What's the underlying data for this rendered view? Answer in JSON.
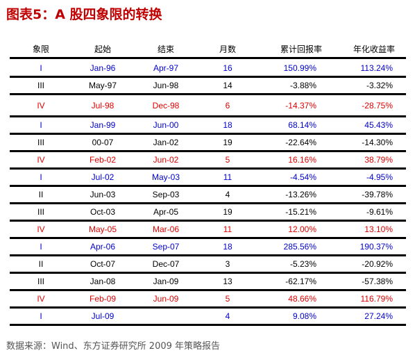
{
  "title": "图表5：A 股四象限的转换",
  "columns": [
    "象限",
    "起始",
    "结束",
    "月数",
    "累计回报率",
    "年化收益率"
  ],
  "rows": [
    {
      "q": "I",
      "start": "Jan-96",
      "end": "Apr-97",
      "months": "16",
      "cum": "150.99%",
      "ann": "113.24%",
      "color": "#0000cc"
    },
    {
      "q": "III",
      "start": "May-97",
      "end": "Jun-98",
      "months": "14",
      "cum": "-3.88%",
      "ann": "-3.32%",
      "color": "#000000"
    },
    {
      "q": "IV",
      "start": "Jul-98",
      "end": "Dec-98",
      "months": "6",
      "cum": "-14.37%",
      "ann": "-28.75%",
      "color": "#e00000"
    },
    {
      "q": "I",
      "start": "Jan-99",
      "end": "Jun-00",
      "months": "18",
      "cum": "68.14%",
      "ann": "45.43%",
      "color": "#0000cc"
    },
    {
      "q": "III",
      "start": "00-07",
      "end": "Jan-02",
      "months": "19",
      "cum": "-22.64%",
      "ann": "-14.30%",
      "color": "#000000"
    },
    {
      "q": "IV",
      "start": "Feb-02",
      "end": "Jun-02",
      "months": "5",
      "cum": "16.16%",
      "ann": "38.79%",
      "color": "#e00000"
    },
    {
      "q": "I",
      "start": "Jul-02",
      "end": "May-03",
      "months": "11",
      "cum": "-4.54%",
      "ann": "-4.95%",
      "color": "#0000cc"
    },
    {
      "q": "II",
      "start": "Jun-03",
      "end": "Sep-03",
      "months": "4",
      "cum": "-13.26%",
      "ann": "-39.78%",
      "color": "#000000"
    },
    {
      "q": "III",
      "start": "Oct-03",
      "end": "Apr-05",
      "months": "19",
      "cum": "-15.21%",
      "ann": "-9.61%",
      "color": "#000000"
    },
    {
      "q": "IV",
      "start": "May-05",
      "end": "Mar-06",
      "months": "11",
      "cum": "12.00%",
      "ann": "13.10%",
      "color": "#e00000"
    },
    {
      "q": "I",
      "start": "Apr-06",
      "end": "Sep-07",
      "months": "18",
      "cum": "285.56%",
      "ann": "190.37%",
      "color": "#0000cc"
    },
    {
      "q": "II",
      "start": "Oct-07",
      "end": "Dec-07",
      "months": "3",
      "cum": "-5.23%",
      "ann": "-20.92%",
      "color": "#000000"
    },
    {
      "q": "III",
      "start": "Jan-08",
      "end": "Jan-09",
      "months": "13",
      "cum": "-62.17%",
      "ann": "-57.38%",
      "color": "#000000"
    },
    {
      "q": "IV",
      "start": "Feb-09",
      "end": "Jun-09",
      "months": "5",
      "cum": "48.66%",
      "ann": "116.79%",
      "color": "#e00000"
    },
    {
      "q": "I",
      "start": "Jul-09",
      "end": "",
      "months": "4",
      "cum": "9.08%",
      "ann": "27.24%",
      "color": "#0000cc"
    }
  ],
  "footnote": "数据来源：Wind、东方证券研究所 2009 年策略报告"
}
